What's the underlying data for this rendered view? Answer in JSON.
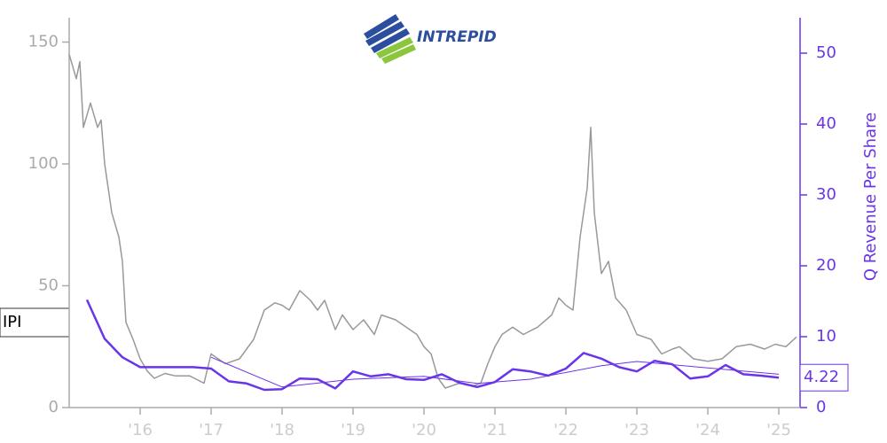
{
  "ticker": "IPI",
  "logo_text": "INTREPID",
  "chart_data": {
    "type": "line",
    "y2_label": "Q Revenue Per Share",
    "xlim": [
      2015.0,
      2025.3
    ],
    "xticks": [
      {
        "value": 2016,
        "label": "'16"
      },
      {
        "value": 2017,
        "label": "'17"
      },
      {
        "value": 2018,
        "label": "'18"
      },
      {
        "value": 2019,
        "label": "'19"
      },
      {
        "value": 2020,
        "label": "'20"
      },
      {
        "value": 2021,
        "label": "'21"
      },
      {
        "value": 2022,
        "label": "'22"
      },
      {
        "value": 2023,
        "label": "'23"
      },
      {
        "value": 2024,
        "label": "'24"
      },
      {
        "value": 2025,
        "label": "'25"
      }
    ],
    "ylim": [
      0,
      160
    ],
    "yticks": [
      0,
      50,
      100,
      150
    ],
    "y2lim": [
      0,
      55
    ],
    "y2ticks": [
      0,
      10,
      20,
      30,
      40,
      50
    ],
    "price": {
      "color": "#999999",
      "x": [
        2015.0,
        2015.1,
        2015.15,
        2015.2,
        2015.25,
        2015.3,
        2015.4,
        2015.45,
        2015.5,
        2015.6,
        2015.7,
        2015.75,
        2015.8,
        2015.9,
        2016.0,
        2016.1,
        2016.2,
        2016.35,
        2016.5,
        2016.7,
        2016.9,
        2017.0,
        2017.2,
        2017.4,
        2017.6,
        2017.75,
        2017.9,
        2018.0,
        2018.1,
        2018.25,
        2018.4,
        2018.5,
        2018.6,
        2018.75,
        2018.85,
        2019.0,
        2019.15,
        2019.3,
        2019.4,
        2019.6,
        2019.8,
        2019.9,
        2020.0,
        2020.1,
        2020.2,
        2020.3,
        2020.5,
        2020.7,
        2020.8,
        2020.9,
        2021.0,
        2021.1,
        2021.25,
        2021.4,
        2021.6,
        2021.8,
        2021.9,
        2022.0,
        2022.1,
        2022.2,
        2022.3,
        2022.35,
        2022.4,
        2022.5,
        2022.6,
        2022.7,
        2022.85,
        2023.0,
        2023.2,
        2023.35,
        2023.5,
        2023.6,
        2023.8,
        2024.0,
        2024.2,
        2024.4,
        2024.6,
        2024.8,
        2024.95,
        2025.1,
        2025.25
      ],
      "values": [
        145,
        135,
        142,
        115,
        120,
        125,
        115,
        118,
        100,
        80,
        70,
        60,
        35,
        28,
        20,
        15,
        12,
        14,
        13,
        13,
        10,
        22,
        18,
        20,
        28,
        40,
        43,
        42,
        40,
        48,
        44,
        40,
        44,
        32,
        38,
        32,
        36,
        30,
        38,
        36,
        32,
        30,
        25,
        22,
        12,
        8,
        10,
        9,
        10,
        18,
        25,
        30,
        33,
        30,
        33,
        38,
        45,
        42,
        40,
        70,
        90,
        115,
        80,
        55,
        60,
        45,
        40,
        30,
        28,
        22,
        24,
        25,
        20,
        19,
        20,
        25,
        26,
        24,
        26,
        25,
        29
      ]
    },
    "series": [
      {
        "color": "#6a35e8",
        "axis": "y2",
        "x": [
          2015.25,
          2015.5,
          2015.75,
          2016.0,
          2016.25,
          2016.5,
          2016.75,
          2017.0,
          2017.25,
          2017.5,
          2017.75,
          2018.0,
          2018.25,
          2018.5,
          2018.75,
          2019.0,
          2019.25,
          2019.5,
          2019.75,
          2020.0,
          2020.25,
          2020.5,
          2020.75,
          2021.0,
          2021.25,
          2021.5,
          2021.75,
          2022.0,
          2022.25,
          2022.5,
          2022.75,
          2023.0,
          2023.25,
          2023.5,
          2023.75,
          2024.0,
          2024.25,
          2024.5,
          2024.75,
          2025.0
        ],
        "values": [
          15.2,
          9.7,
          7.1,
          5.7,
          5.7,
          5.7,
          5.7,
          5.5,
          3.7,
          3.4,
          2.5,
          2.6,
          4.1,
          4.0,
          2.7,
          5.1,
          4.4,
          4.7,
          4.0,
          3.9,
          4.7,
          3.5,
          2.9,
          3.6,
          5.4,
          5.1,
          4.5,
          5.5,
          7.7,
          6.9,
          5.7,
          5.1,
          6.6,
          6.1,
          4.1,
          4.4,
          6.0,
          4.7,
          4.5,
          4.22
        ]
      },
      {
        "color": "#6a35e8",
        "axis": "y2",
        "x": [
          2017.0,
          2018.0,
          2019.0,
          2020.0,
          2020.75,
          2021.5,
          2022.5,
          2023.0,
          2024.0,
          2025.0
        ],
        "values": [
          7.1,
          2.9,
          4.0,
          4.4,
          3.4,
          4.0,
          5.9,
          6.5,
          5.6,
          4.7
        ]
      }
    ]
  }
}
